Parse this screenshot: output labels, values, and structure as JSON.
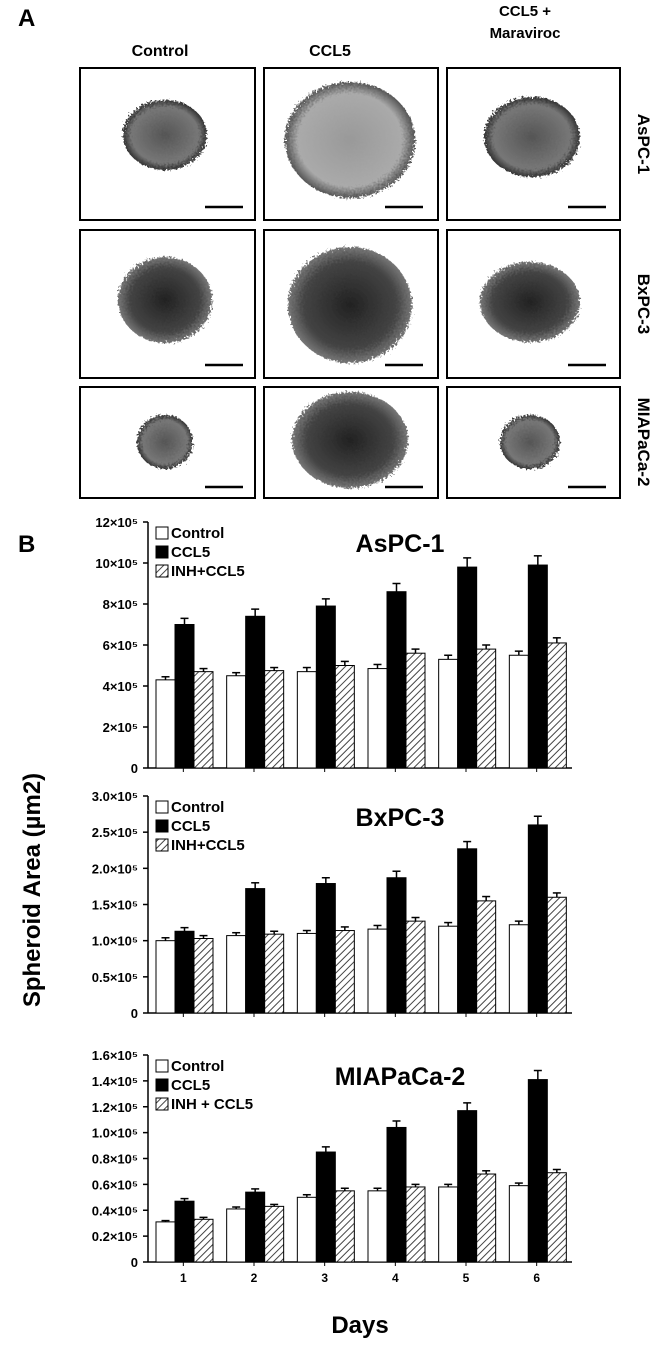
{
  "panel_a": {
    "label": "A",
    "columns": [
      "Control",
      "CCL5",
      [
        "CCL5 +",
        "Maraviroc"
      ]
    ],
    "rows": [
      "AsPC-1",
      "BxPC-3",
      "MIAPaCa-2"
    ]
  },
  "panel_b": {
    "label": "B",
    "ylabel": "Spheroid Area (µm2)",
    "xlabel": "Days"
  },
  "chart_data": [
    {
      "type": "bar",
      "title": "AsPC-1",
      "legend": "top-left",
      "categories": [
        null,
        null,
        null,
        null,
        null,
        null
      ],
      "series": [
        {
          "name": "Control",
          "color": "#ffffff",
          "values": [
            430000,
            450000,
            470000,
            485000,
            530000,
            550000
          ],
          "errors": [
            15000,
            15000,
            20000,
            20000,
            20000,
            20000
          ]
        },
        {
          "name": "CCL5",
          "color": "#000000",
          "values": [
            700000,
            740000,
            790000,
            860000,
            980000,
            990000
          ],
          "errors": [
            30000,
            35000,
            35000,
            40000,
            45000,
            45000
          ]
        },
        {
          "name": "INH+CCL5",
          "color": "#ffffff",
          "hatch": true,
          "values": [
            470000,
            475000,
            500000,
            560000,
            580000,
            610000
          ],
          "errors": [
            15000,
            15000,
            20000,
            20000,
            20000,
            25000
          ]
        }
      ],
      "ylim": [
        0,
        1200000
      ],
      "yticks": [
        0,
        {
          "value": 200000,
          "label": "2×10⁵"
        },
        {
          "value": 400000,
          "label": "4×10⁵"
        },
        {
          "value": 600000,
          "label": "6×10⁵"
        },
        {
          "value": 800000,
          "label": "8×10⁵"
        },
        {
          "value": 1000000,
          "label": "10×10⁵"
        },
        {
          "value": 1200000,
          "label": "12×10⁵"
        }
      ]
    },
    {
      "type": "bar",
      "title": "BxPC-3",
      "legend": "top-left",
      "categories": [
        null,
        null,
        null,
        null,
        null,
        null
      ],
      "series": [
        {
          "name": "Control",
          "color": "#ffffff",
          "values": [
            100000,
            107000,
            110000,
            116000,
            120000,
            122000
          ],
          "errors": [
            4000,
            4000,
            4000,
            5000,
            5000,
            5000
          ]
        },
        {
          "name": "CCL5",
          "color": "#000000",
          "values": [
            113000,
            172000,
            179000,
            187000,
            227000,
            260000
          ],
          "errors": [
            5000,
            8000,
            8000,
            9000,
            10000,
            12000
          ]
        },
        {
          "name": "INH+CCL5",
          "color": "#ffffff",
          "hatch": true,
          "values": [
            103000,
            109000,
            114000,
            127000,
            155000,
            160000
          ],
          "errors": [
            4000,
            4000,
            5000,
            5000,
            6000,
            6000
          ]
        }
      ],
      "ylim": [
        0,
        300000
      ],
      "yticks": [
        0,
        {
          "value": 50000,
          "label": "0.5×10⁵"
        },
        {
          "value": 100000,
          "label": "1.0×10⁵"
        },
        {
          "value": 150000,
          "label": "1.5×10⁵"
        },
        {
          "value": 200000,
          "label": "2.0×10⁵"
        },
        {
          "value": 250000,
          "label": "2.5×10⁵"
        },
        {
          "value": 300000,
          "label": "3.0×10⁵"
        }
      ]
    },
    {
      "type": "bar",
      "title": "MIAPaCa-2",
      "legend": "top-left",
      "categories": [
        "1",
        "2",
        "3",
        "4",
        "5",
        "6"
      ],
      "series": [
        {
          "name": "Control",
          "color": "#ffffff",
          "values": [
            31000,
            41000,
            50000,
            55000,
            58000,
            59000
          ],
          "errors": [
            1000,
            1500,
            2000,
            2000,
            2000,
            2000
          ]
        },
        {
          "name": "CCL5",
          "color": "#000000",
          "values": [
            47000,
            54000,
            85000,
            104000,
            117000,
            141000
          ],
          "errors": [
            2000,
            2500,
            4000,
            5000,
            6000,
            7000
          ]
        },
        {
          "name": "INH + CCL5",
          "color": "#ffffff",
          "hatch": true,
          "values": [
            33000,
            43000,
            55000,
            58000,
            68000,
            69000
          ],
          "errors": [
            1500,
            1500,
            2000,
            2000,
            2500,
            2500
          ]
        }
      ],
      "ylim": [
        0,
        160000
      ],
      "yticks": [
        0,
        {
          "value": 20000,
          "label": "0.2×10⁵"
        },
        {
          "value": 40000,
          "label": "0.4×10⁵"
        },
        {
          "value": 60000,
          "label": "0.6×10⁵"
        },
        {
          "value": 80000,
          "label": "0.8×10⁵"
        },
        {
          "value": 100000,
          "label": "1.0×10⁵"
        },
        {
          "value": 120000,
          "label": "1.2×10⁵"
        },
        {
          "value": 140000,
          "label": "1.4×10⁵"
        },
        {
          "value": 160000,
          "label": "1.6×10⁵"
        }
      ]
    }
  ]
}
